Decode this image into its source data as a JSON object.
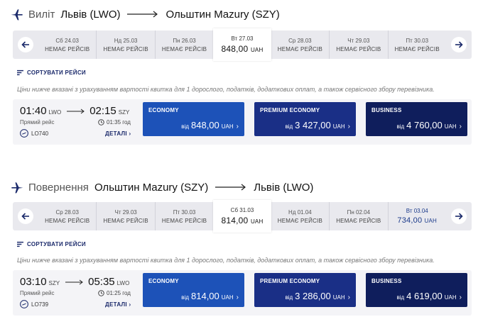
{
  "outbound": {
    "direction_label": "Виліт",
    "origin": "Львів (LWO)",
    "destination": "Ольштин Mazury (SZY)",
    "days": [
      {
        "label": "Сб 24.03",
        "price": "НЕМАЄ РЕЙСІВ"
      },
      {
        "label": "Нд 25.03",
        "price": "НЕМАЄ РЕЙСІВ"
      },
      {
        "label": "Пн 26.03",
        "price": "НЕМАЄ РЕЙСІВ"
      },
      {
        "label": "Вт 27.03",
        "price": "848,00",
        "currency": "UAH",
        "selected": true
      },
      {
        "label": "Ср 28.03",
        "price": "НЕМАЄ РЕЙСІВ"
      },
      {
        "label": "Чт 29.03",
        "price": "НЕМАЄ РЕЙСІВ"
      },
      {
        "label": "Пт 30.03",
        "price": "НЕМАЄ РЕЙСІВ"
      }
    ],
    "sort_label": "СОРТУВАТИ РЕЙСИ",
    "note": "Ціни нижче вказані з урахуванням вартості квитка для 1 дорослого, податків, додаткових оплат, а також сервісного збору перевізника.",
    "flight": {
      "dep_time": "01:40",
      "dep_code": "LWO",
      "arr_time": "02:15",
      "arr_code": "SZY",
      "type": "Прямий рейс",
      "duration": "01:35 год",
      "flight_no": "LO740",
      "details_label": "ДЕТАЛІ",
      "fares": [
        {
          "name": "ECONOMY",
          "from": "від",
          "amount": "848,00",
          "currency": "UAH"
        },
        {
          "name": "PREMIUM ECONOMY",
          "from": "від",
          "amount": "3 427,00",
          "currency": "UAH"
        },
        {
          "name": "BUSINESS",
          "from": "від",
          "amount": "4 760,00",
          "currency": "UAH"
        }
      ]
    }
  },
  "return": {
    "direction_label": "Повернення",
    "origin": "Ольштин Mazury (SZY)",
    "destination": "Львів (LWO)",
    "days": [
      {
        "label": "Ср 28.03",
        "price": "НЕМАЄ РЕЙСІВ"
      },
      {
        "label": "Чт 29.03",
        "price": "НЕМАЄ РЕЙСІВ"
      },
      {
        "label": "Пт 30.03",
        "price": "НЕМАЄ РЕЙСІВ"
      },
      {
        "label": "Сб 31.03",
        "price": "814,00",
        "currency": "UAH",
        "selected": true
      },
      {
        "label": "Нд 01.04",
        "price": "НЕМАЄ РЕЙСІВ"
      },
      {
        "label": "Пн 02.04",
        "price": "НЕМАЄ РЕЙСІВ"
      },
      {
        "label": "Вт 03.04",
        "price": "734,00",
        "currency": "UAH",
        "cheap": true
      }
    ],
    "sort_label": "СОРТУВАТИ РЕЙСИ",
    "note": "Ціни нижче вказані з урахуванням вартості квитка для 1 дорослого, податків, додаткових оплат, а також сервісного збору перевізника.",
    "flight": {
      "dep_time": "03:10",
      "dep_code": "SZY",
      "arr_time": "05:35",
      "arr_code": "LWO",
      "type": "Прямий рейс",
      "duration": "01:25 год",
      "flight_no": "LO739",
      "details_label": "ДЕТАЛІ",
      "fares": [
        {
          "name": "ECONOMY",
          "from": "від",
          "amount": "814,00",
          "currency": "UAH"
        },
        {
          "name": "PREMIUM ECONOMY",
          "from": "від",
          "amount": "3 286,00",
          "currency": "UAH"
        },
        {
          "name": "BUSINESS",
          "from": "від",
          "amount": "4 619,00",
          "currency": "UAH"
        }
      ]
    }
  },
  "colors": {
    "economy": "#1d52b8",
    "premium": "#1a2f86",
    "business": "#0f1e5c",
    "link": "#1b2a6b"
  },
  "icons": {
    "outbound": "plane-right-icon",
    "return": "plane-left-icon",
    "prev": "arrow-left-icon",
    "next": "arrow-right-icon",
    "sort": "sort-icon",
    "clock": "clock-icon",
    "airline": "lot-logo-icon"
  }
}
